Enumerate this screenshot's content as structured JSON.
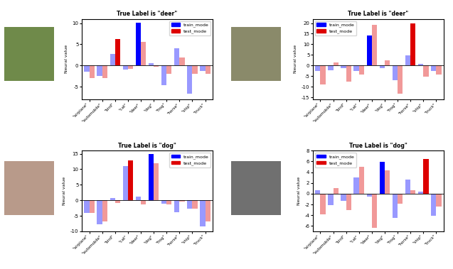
{
  "chart_data": [
    {
      "type": "bar",
      "title": "True Label is \"deer\"",
      "y_label": "Neural value",
      "categories": [
        "\"airplane\"",
        "\"automobile\"",
        "\"bird\"",
        "\"cat\"",
        "\"deer\"",
        "\"dog\"",
        "\"frog\"",
        "\"horse\"",
        "\"ship\"",
        "\"truck\""
      ],
      "series": [
        {
          "name": "train_mode",
          "color": "#0000ff",
          "values": [
            -1.5,
            -2.5,
            2.7,
            -1.0,
            10.1,
            0.6,
            -4.7,
            4.0,
            -6.6,
            -1.3
          ]
        },
        {
          "name": "test_mode",
          "color": "#dd0000",
          "values": [
            -3.0,
            -3.0,
            6.2,
            -0.8,
            5.6,
            -0.3,
            -2.0,
            1.9,
            -2.0,
            -2.0
          ]
        }
      ],
      "ylim": [
        -8,
        11
      ],
      "yticks": [
        -5,
        0,
        5,
        10
      ],
      "legend": "upper right",
      "grid": false
    },
    {
      "type": "bar",
      "title": "True Label is \"deer\"",
      "y_label": "Neural value",
      "categories": [
        "\"airplane\"",
        "\"automobile\"",
        "\"bird\"",
        "\"cat\"",
        "\"deer\"",
        "\"dog\"",
        "\"frog\"",
        "\"horse\"",
        "\"ship\"",
        "\"truck\""
      ],
      "series": [
        {
          "name": "train_mode",
          "color": "#0000ff",
          "values": [
            -2.4,
            -2.2,
            -1.3,
            -2.7,
            14.3,
            -1.2,
            -6.8,
            4.7,
            0.8,
            -2.4
          ]
        },
        {
          "name": "test_mode",
          "color": "#dd0000",
          "values": [
            -8.8,
            1.6,
            -7.6,
            -4.1,
            19.3,
            2.3,
            -13.4,
            19.8,
            -5.2,
            -4.3
          ]
        }
      ],
      "ylim": [
        -16,
        22
      ],
      "yticks": [
        -15,
        -10,
        -5,
        0,
        5,
        10,
        15,
        20
      ],
      "legend": "upper left",
      "grid": false
    },
    {
      "type": "bar",
      "title": "True Label is \"dog\"",
      "y_label": "Neural value",
      "categories": [
        "\"airplane\"",
        "\"automobile\"",
        "\"bird\"",
        "\"cat\"",
        "\"deer\"",
        "\"dog\"",
        "\"frog\"",
        "\"horse\"",
        "\"ship\"",
        "\"truck\""
      ],
      "series": [
        {
          "name": "train_mode",
          "color": "#0000ff",
          "values": [
            -4.0,
            -7.7,
            0.8,
            11.0,
            1.3,
            15.0,
            -1.2,
            -3.8,
            -2.6,
            -8.5
          ]
        },
        {
          "name": "test_mode",
          "color": "#dd0000",
          "values": [
            -4.0,
            -6.8,
            -0.8,
            12.9,
            -1.3,
            12.0,
            -1.4,
            -0.5,
            -2.8,
            -6.9
          ]
        }
      ],
      "ylim": [
        -10,
        16
      ],
      "yticks": [
        -10,
        -5,
        0,
        5,
        10,
        15
      ],
      "legend": "upper right",
      "grid": false
    },
    {
      "type": "bar",
      "title": "True Label is \"dog\"",
      "y_label": "Neural value",
      "categories": [
        "\"airplane\"",
        "\"automobile\"",
        "\"bird\"",
        "\"cat\"",
        "\"deer\"",
        "\"dog\"",
        "\"frog\"",
        "\"horse\"",
        "\"ship\"",
        "\"truck\""
      ],
      "series": [
        {
          "name": "train_mode",
          "color": "#0000ff",
          "values": [
            0.6,
            -2.1,
            -1.3,
            3.0,
            -0.6,
            5.9,
            -4.5,
            2.6,
            0.4,
            -4.1
          ]
        },
        {
          "name": "test_mode",
          "color": "#dd0000",
          "values": [
            -3.9,
            1.0,
            -3.0,
            5.0,
            -6.3,
            4.4,
            -1.9,
            0.6,
            6.4,
            -2.4
          ]
        }
      ],
      "ylim": [
        -7,
        8
      ],
      "yticks": [
        -6,
        -4,
        -2,
        0,
        2,
        4,
        6,
        8
      ],
      "legend": "upper left",
      "grid": false
    }
  ]
}
